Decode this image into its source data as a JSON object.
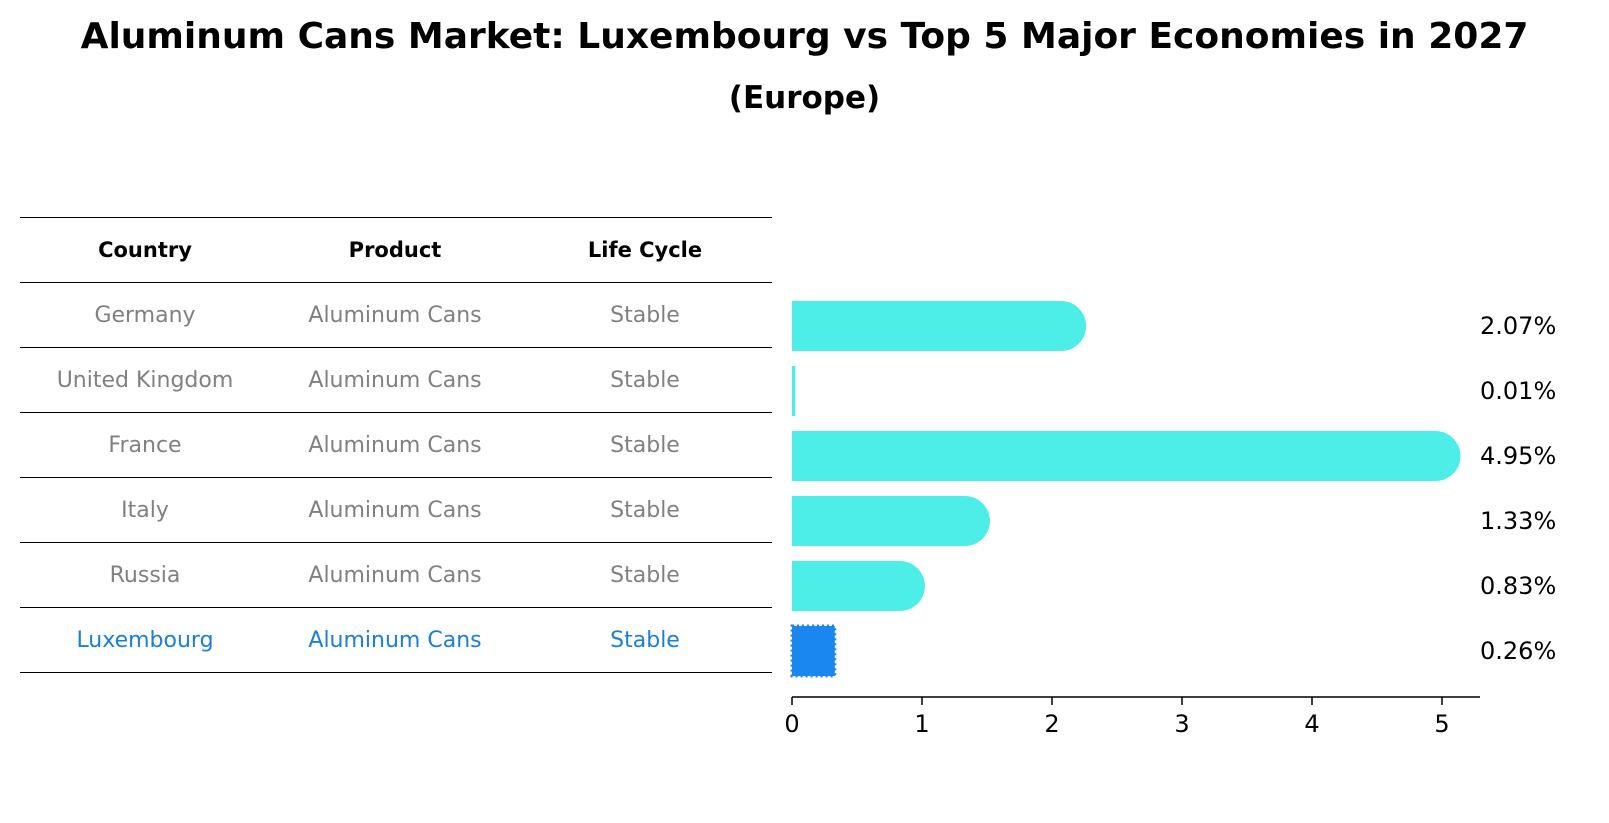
{
  "title": "Aluminum Cans Market: Luxembourg vs Top 5 Major Economies in 2027",
  "subtitle": "(Europe)",
  "table": {
    "headers": [
      "Country",
      "Product",
      "Life Cycle"
    ],
    "rows": [
      [
        "Germany",
        "Aluminum Cans",
        "Stable"
      ],
      [
        "United Kingdom",
        "Aluminum Cans",
        "Stable"
      ],
      [
        "France",
        "Aluminum Cans",
        "Stable"
      ],
      [
        "Italy",
        "Aluminum Cans",
        "Stable"
      ],
      [
        "Russia",
        "Aluminum Cans",
        "Stable"
      ],
      [
        "Luxembourg",
        "Aluminum Cans",
        "Stable"
      ]
    ],
    "highlight_row": 5
  },
  "colors": {
    "bar": "#4deee8",
    "highlight_bar": "#1a86f0",
    "highlight_text": "#1a7fd6",
    "row_text": "#808080"
  },
  "chart_data": {
    "type": "bar",
    "orientation": "horizontal",
    "categories": [
      "Germany",
      "United Kingdom",
      "France",
      "Italy",
      "Russia",
      "Luxembourg"
    ],
    "values": [
      2.07,
      0.01,
      4.95,
      1.33,
      0.83,
      0.26
    ],
    "value_labels": [
      "2.07%",
      "0.01%",
      "4.95%",
      "1.33%",
      "0.83%",
      "0.26%"
    ],
    "xticks": [
      "0",
      "1",
      "2",
      "3",
      "4",
      "5"
    ],
    "xlim": [
      0,
      5.2
    ],
    "grid": false
  }
}
